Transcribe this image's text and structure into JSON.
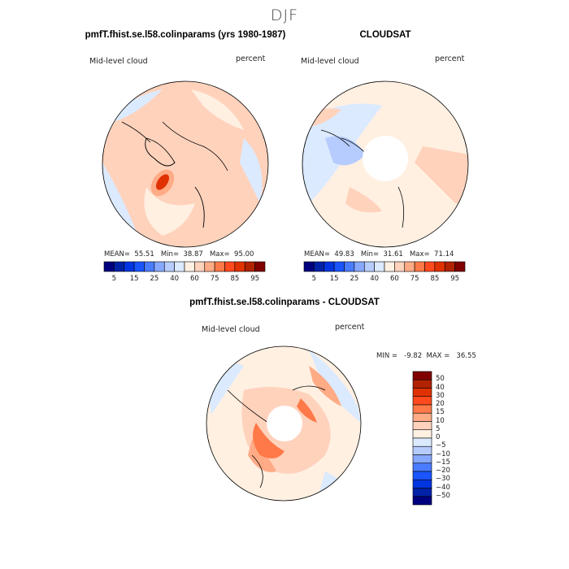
{
  "figure_title": "DJF",
  "palette": [
    "#00007f",
    "#0022a8",
    "#0035e0",
    "#1a55ff",
    "#4a7cff",
    "#86a8ff",
    "#b6ccff",
    "#dbeaff",
    "#fff0e2",
    "#ffd2bc",
    "#ffab86",
    "#ff7a48",
    "#ff4a1e",
    "#e03200",
    "#b02200",
    "#800000"
  ],
  "panels": [
    {
      "title": "pmfT.fhist.se.l58.colinparams (yrs 1980-1987)",
      "left_label": "Mid-level cloud",
      "right_label": "percent",
      "stats": {
        "mean_label": "MEAN=",
        "mean": "55.51",
        "min_label": "Min=",
        "min": "38.87",
        "max_label": "Max=",
        "max": "95.00"
      },
      "colorbar_labels": [
        "5",
        "15",
        "25",
        "40",
        "60",
        "75",
        "85",
        "95"
      ]
    },
    {
      "title": "CLOUDSAT",
      "left_label": "Mid-level cloud",
      "right_label": "percent",
      "stats": {
        "mean_label": "MEAN=",
        "mean": "49.83",
        "min_label": "Min=",
        "min": "31.61",
        "max_label": "Max=",
        "max": "71.14"
      },
      "colorbar_labels": [
        "5",
        "15",
        "25",
        "40",
        "60",
        "75",
        "85",
        "95"
      ]
    }
  ],
  "difference": {
    "title": "pmfT.fhist.se.l58.colinparams - CLOUDSAT",
    "left_label": "Mid-level cloud",
    "right_label": "percent",
    "minmax": "MIN =   -9.82  MAX =   36.55",
    "colorbar_labels": [
      "50",
      "40",
      "30",
      "20",
      "15",
      "10",
      "5",
      "0",
      "−5",
      "−10",
      "−15",
      "−20",
      "−30",
      "−40",
      "−50"
    ]
  }
}
